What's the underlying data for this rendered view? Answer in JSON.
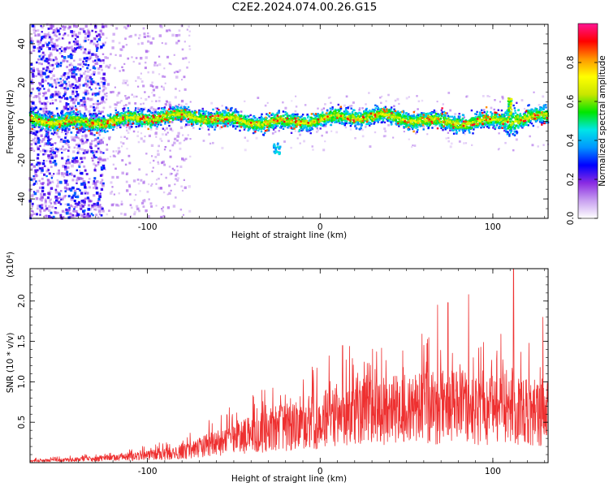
{
  "title": "C2E2.2024.074.00.26.G15",
  "chart_data": [
    {
      "type": "heatmap",
      "xlabel": "Height of straight line (km)",
      "ylabel": "Frequency (Hz)",
      "xlim": [
        -168,
        132
      ],
      "ylim": [
        -50,
        50
      ],
      "xticks": [
        -100,
        0,
        100
      ],
      "yticks": [
        -40,
        -20,
        0,
        20,
        40
      ],
      "colorbar": {
        "label": "Normalized spectral amplitude",
        "range": [
          0,
          1
        ],
        "ticks": [
          "0.0",
          "0.2",
          "0.4",
          "0.6",
          "0.8"
        ],
        "colormap": [
          "#ffffff",
          "#c8a0f0",
          "#8a2be2",
          "#0000ff",
          "#0096ff",
          "#00e6e6",
          "#00e600",
          "#c8e600",
          "#ffff00",
          "#ff9600",
          "#ff0000",
          "#ff1493"
        ]
      },
      "ridge": {
        "center_hz": 1,
        "halfwidth_hz": 5,
        "noise_region_x": [
          -168,
          -125
        ],
        "faint_noise_until_x": -75,
        "spike_at_x": 110
      }
    },
    {
      "type": "line",
      "xlabel": "Height of straight line (km)",
      "ylabel": "SNR (10 * v/v)",
      "yscale_label": "(x10⁴)",
      "xlim": [
        -168,
        132
      ],
      "ylim": [
        0,
        2.4
      ],
      "xticks": [
        -100,
        0,
        100
      ],
      "yticks": [
        "0.5",
        "1.0",
        "1.5",
        "2.0"
      ],
      "color": "#ee3030",
      "envelope": {
        "x": [
          -168,
          -140,
          -110,
          -90,
          -75,
          -60,
          -45,
          -30,
          -15,
          0,
          15,
          30,
          50,
          70,
          90,
          110,
          132
        ],
        "y": [
          0.03,
          0.05,
          0.09,
          0.14,
          0.2,
          0.32,
          0.42,
          0.5,
          0.58,
          0.68,
          0.75,
          0.82,
          0.85,
          0.88,
          0.88,
          0.86,
          0.82
        ]
      },
      "peaks": [
        {
          "x": -33,
          "y": 0.65
        },
        {
          "x": 13,
          "y": 1.45
        },
        {
          "x": 17,
          "y": 1.44
        },
        {
          "x": 68,
          "y": 1.95
        },
        {
          "x": 74,
          "y": 1.98
        },
        {
          "x": 86,
          "y": 2.08
        },
        {
          "x": 112,
          "y": 2.4
        },
        {
          "x": 129,
          "y": 1.8
        }
      ]
    }
  ]
}
